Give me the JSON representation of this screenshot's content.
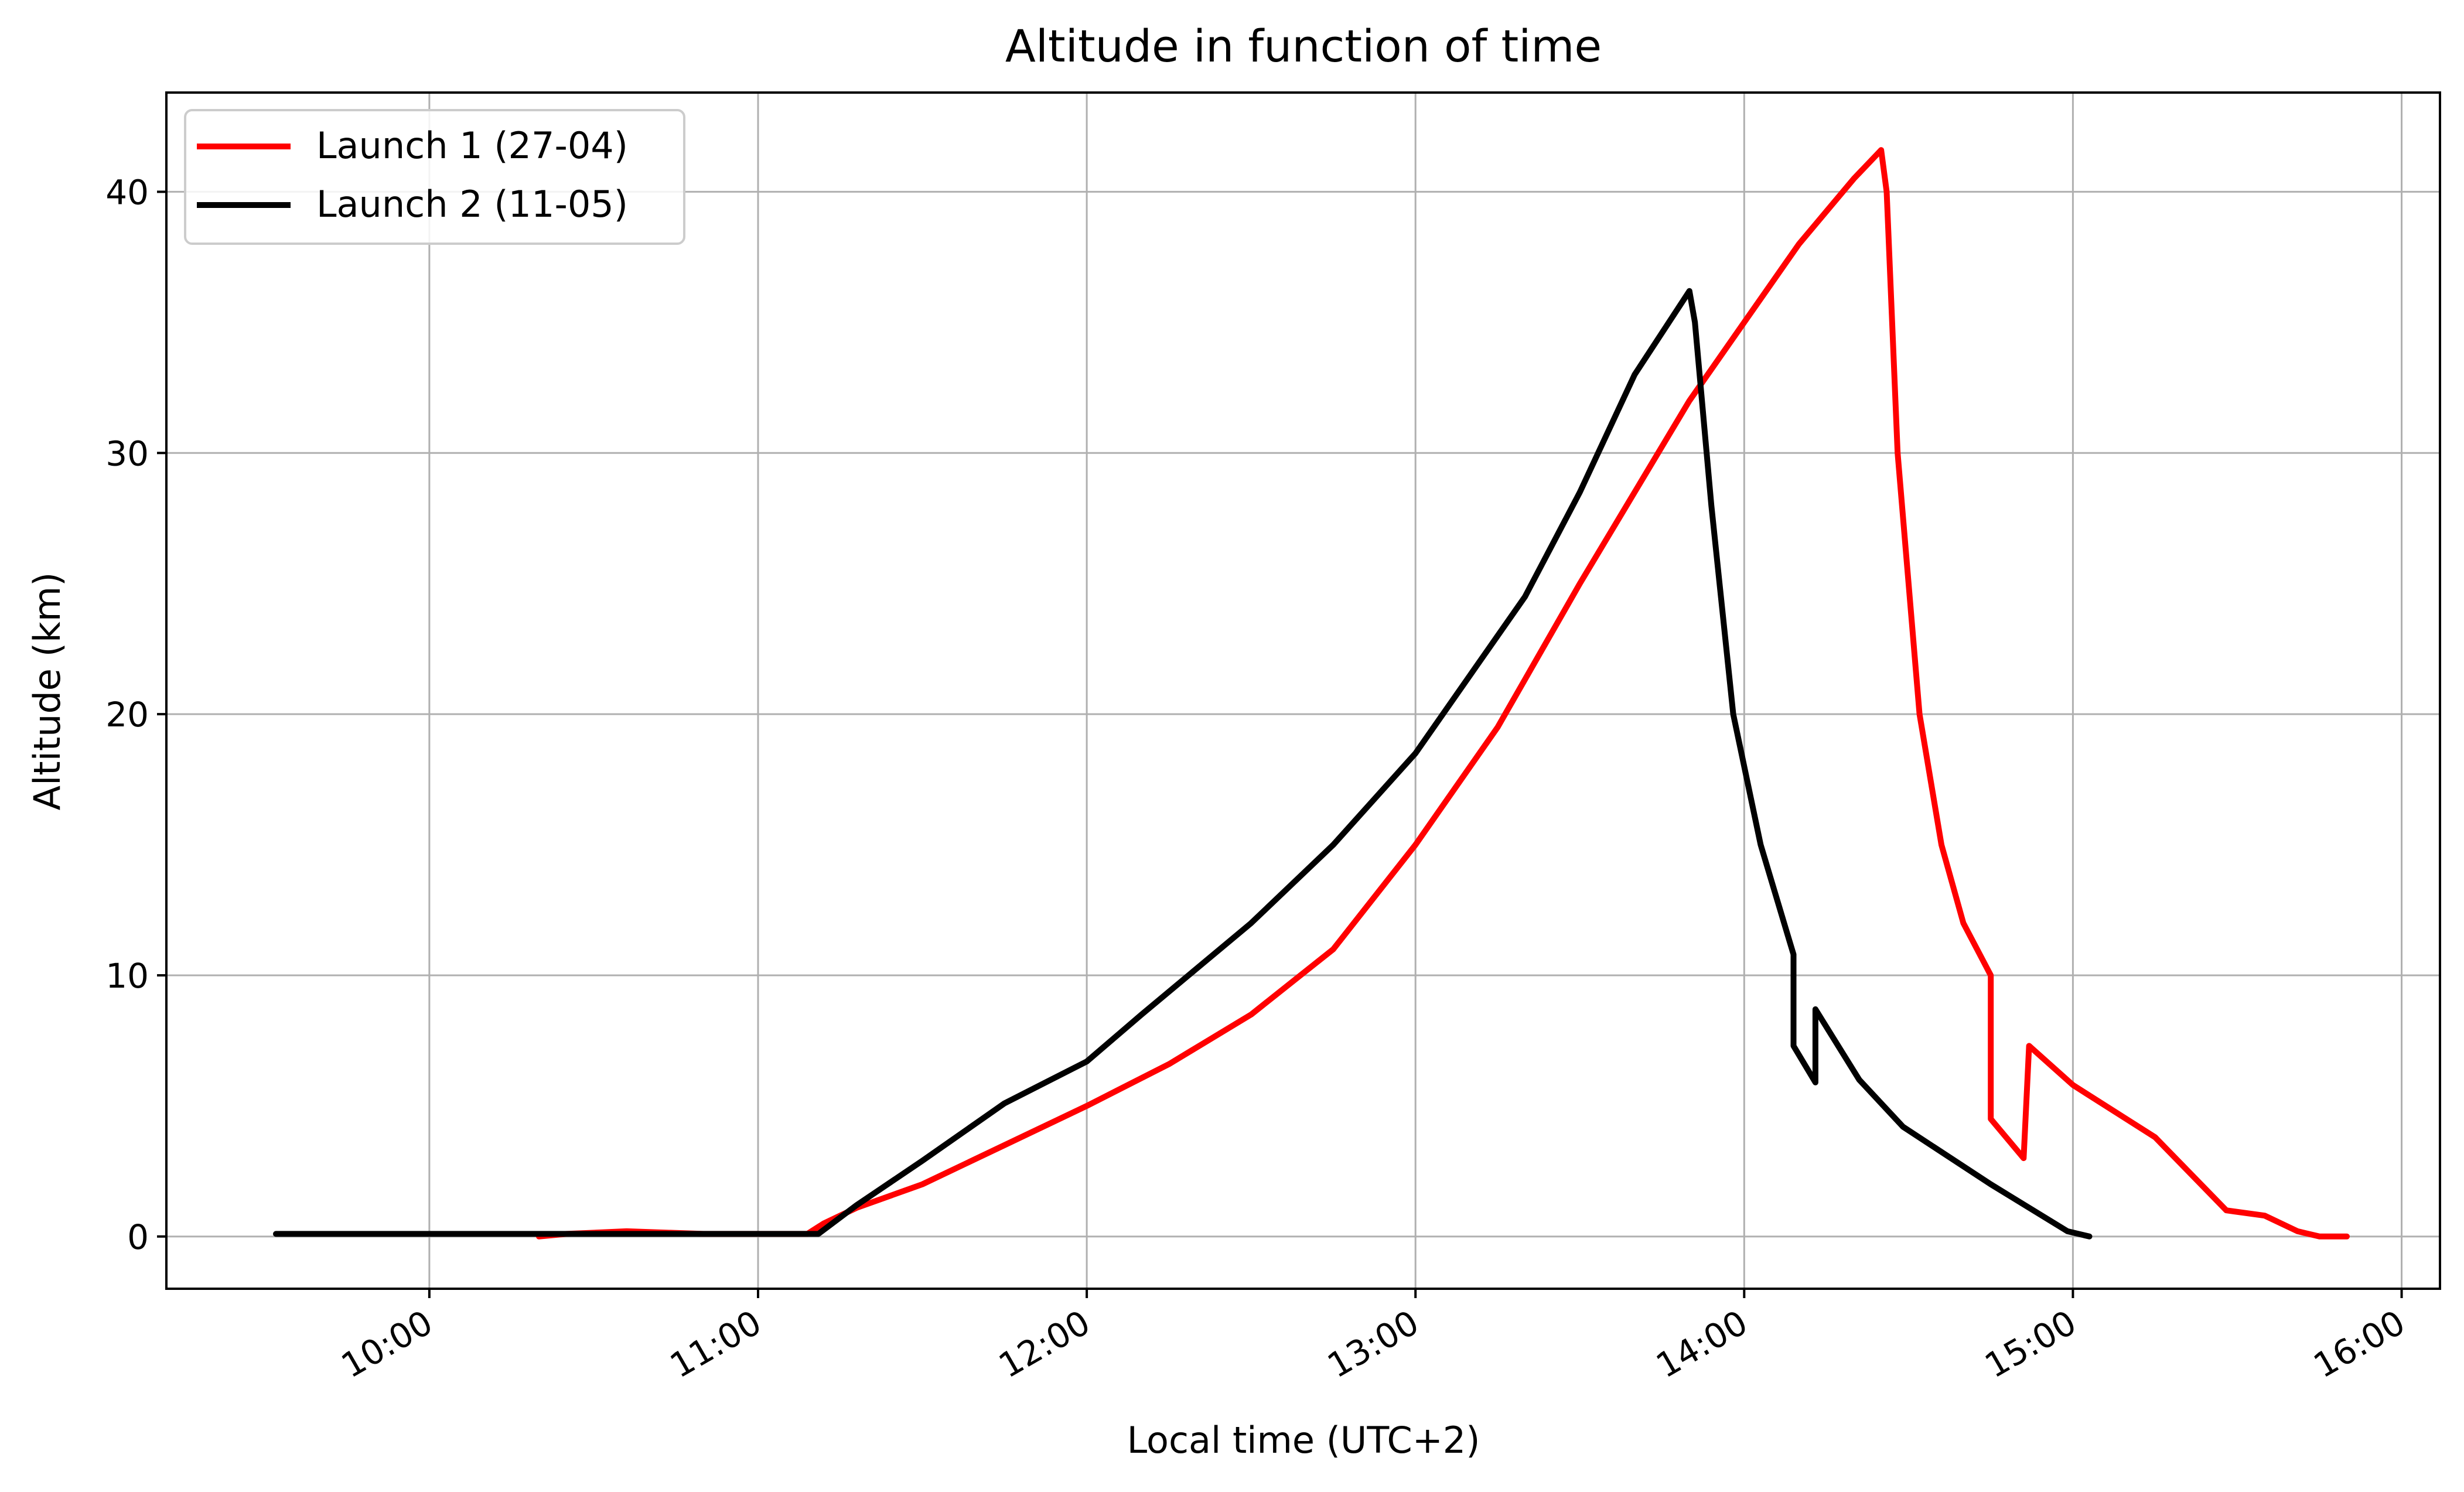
{
  "chart_data": {
    "type": "line",
    "title": "Altitude in function of time",
    "xlabel": "Local time (UTC+2)",
    "ylabel": "Altitude (km)",
    "xlim": [
      "09:12",
      "16:07"
    ],
    "ylim": [
      -2,
      43.8
    ],
    "x_ticks": [
      "10:00",
      "11:00",
      "12:00",
      "13:00",
      "14:00",
      "15:00",
      "16:00"
    ],
    "y_ticks": [
      0,
      10,
      20,
      30,
      40
    ],
    "grid": true,
    "legend_position": "top-left",
    "series": [
      {
        "name": "Launch 1 (27-04)",
        "color": "#ff0000",
        "points": [
          [
            "10:20",
            0.0
          ],
          [
            "10:25",
            0.1
          ],
          [
            "10:36",
            0.2
          ],
          [
            "10:50",
            0.1
          ],
          [
            "11:09",
            0.1
          ],
          [
            "11:12",
            0.5
          ],
          [
            "11:18",
            1.1
          ],
          [
            "11:30",
            2.0
          ],
          [
            "11:45",
            3.5
          ],
          [
            "12:00",
            5.0
          ],
          [
            "12:15",
            6.6
          ],
          [
            "12:30",
            8.5
          ],
          [
            "12:45",
            11.0
          ],
          [
            "13:00",
            15.0
          ],
          [
            "13:15",
            19.5
          ],
          [
            "13:30",
            25.0
          ],
          [
            "13:40",
            28.5
          ],
          [
            "13:50",
            32.0
          ],
          [
            "14:00",
            35.0
          ],
          [
            "14:10",
            38.0
          ],
          [
            "14:20",
            40.5
          ],
          [
            "14:25",
            41.6
          ],
          [
            "14:26",
            40.0
          ],
          [
            "14:28",
            30.0
          ],
          [
            "14:32",
            20.0
          ],
          [
            "14:36",
            15.0
          ],
          [
            "14:40",
            12.0
          ],
          [
            "14:45",
            10.0
          ],
          [
            "14:45",
            4.5
          ],
          [
            "14:51",
            3.0
          ],
          [
            "14:52",
            7.3
          ],
          [
            "15:00",
            5.8
          ],
          [
            "15:15",
            3.8
          ],
          [
            "15:28",
            1.0
          ],
          [
            "15:35",
            0.8
          ],
          [
            "15:41",
            0.2
          ],
          [
            "15:45",
            0.0
          ],
          [
            "15:50",
            0.0
          ]
        ]
      },
      {
        "name": "Launch 2 (11-05)",
        "color": "#000000",
        "points": [
          [
            "09:32",
            0.1
          ],
          [
            "10:00",
            0.1
          ],
          [
            "11:11",
            0.1
          ],
          [
            "11:18",
            1.2
          ],
          [
            "11:30",
            2.9
          ],
          [
            "11:45",
            5.1
          ],
          [
            "12:00",
            6.7
          ],
          [
            "12:10",
            8.5
          ],
          [
            "12:30",
            12.0
          ],
          [
            "12:45",
            15.0
          ],
          [
            "13:00",
            18.5
          ],
          [
            "13:10",
            21.5
          ],
          [
            "13:20",
            24.5
          ],
          [
            "13:30",
            28.5
          ],
          [
            "13:40",
            33.0
          ],
          [
            "13:50",
            36.2
          ],
          [
            "13:51",
            35.0
          ],
          [
            "13:54",
            28.0
          ],
          [
            "13:58",
            20.0
          ],
          [
            "14:03",
            15.0
          ],
          [
            "14:08",
            11.5
          ],
          [
            "14:09",
            10.8
          ],
          [
            "14:09",
            7.3
          ],
          [
            "14:13",
            5.9
          ],
          [
            "14:13",
            8.7
          ],
          [
            "14:21",
            6.0
          ],
          [
            "14:29",
            4.2
          ],
          [
            "14:45",
            2.0
          ],
          [
            "14:59",
            0.2
          ],
          [
            "15:03",
            0.0
          ]
        ]
      }
    ]
  }
}
